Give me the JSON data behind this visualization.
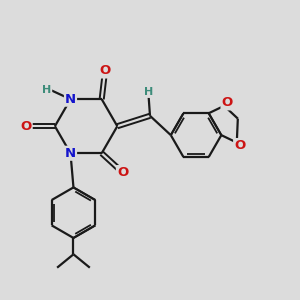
{
  "background_color": "#dcdcdc",
  "bond_color": "#1a1a1a",
  "N_color": "#1414cc",
  "O_color": "#cc1414",
  "H_color": "#3d8c7a",
  "figsize": [
    3.0,
    3.0
  ],
  "dpi": 100,
  "xlim": [
    0,
    10
  ],
  "ylim": [
    0,
    10
  ]
}
